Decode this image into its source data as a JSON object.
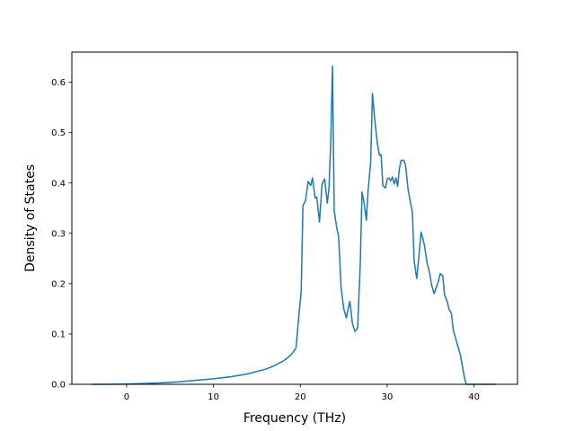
{
  "chart_data": {
    "type": "line",
    "title": "",
    "xlabel": "Frequency (THz)",
    "ylabel": "Density of States",
    "xlim": [
      -6.3,
      45.0
    ],
    "ylim": [
      0.0,
      0.66
    ],
    "xticks": [
      0,
      10,
      20,
      30,
      40
    ],
    "yticks": [
      0.0,
      0.1,
      0.2,
      0.3,
      0.4,
      0.5,
      0.6
    ],
    "ytick_labels": [
      "0.0",
      "0.1",
      "0.2",
      "0.3",
      "0.4",
      "0.5",
      "0.6"
    ],
    "grid": false,
    "legend": "none",
    "series": [
      {
        "color": "#1f77b4",
        "x": [
          -4.0,
          -2.0,
          0.0,
          2.0,
          4.0,
          6.0,
          8.0,
          10.0,
          12.0,
          14.0,
          16.0,
          17.0,
          18.0,
          18.5,
          19.0,
          19.5,
          19.8,
          20.1,
          20.3,
          20.6,
          20.9,
          21.2,
          21.4,
          21.7,
          21.9,
          22.2,
          22.5,
          22.8,
          23.1,
          23.3,
          23.5,
          23.7,
          23.9,
          24.2,
          24.4,
          24.7,
          25.0,
          25.3,
          25.5,
          25.7,
          26.0,
          26.3,
          26.6,
          26.9,
          27.1,
          27.3,
          27.6,
          27.8,
          28.1,
          28.3,
          28.6,
          28.9,
          29.1,
          29.3,
          29.5,
          29.8,
          30.0,
          30.2,
          30.4,
          30.6,
          30.8,
          31.0,
          31.2,
          31.4,
          31.6,
          31.9,
          32.1,
          32.4,
          32.6,
          32.9,
          33.1,
          33.4,
          33.6,
          33.9,
          34.1,
          34.3,
          34.6,
          34.9,
          35.1,
          35.4,
          35.6,
          35.9,
          36.1,
          36.4,
          36.6,
          36.9,
          37.1,
          37.4,
          37.6,
          37.9,
          38.1,
          38.4,
          38.6,
          38.9,
          39.1,
          40.0,
          42.5
        ],
        "y": [
          0.0,
          0.0,
          0.0005,
          0.0015,
          0.003,
          0.005,
          0.008,
          0.011,
          0.015,
          0.021,
          0.03,
          0.037,
          0.046,
          0.052,
          0.06,
          0.072,
          0.13,
          0.185,
          0.355,
          0.365,
          0.403,
          0.395,
          0.41,
          0.37,
          0.372,
          0.322,
          0.398,
          0.408,
          0.36,
          0.39,
          0.48,
          0.632,
          0.345,
          0.31,
          0.295,
          0.19,
          0.15,
          0.132,
          0.15,
          0.165,
          0.12,
          0.105,
          0.112,
          0.24,
          0.382,
          0.365,
          0.326,
          0.385,
          0.442,
          0.578,
          0.52,
          0.475,
          0.455,
          0.456,
          0.395,
          0.39,
          0.408,
          0.41,
          0.404,
          0.412,
          0.398,
          0.41,
          0.393,
          0.428,
          0.445,
          0.445,
          0.437,
          0.388,
          0.368,
          0.342,
          0.245,
          0.21,
          0.245,
          0.302,
          0.29,
          0.275,
          0.24,
          0.22,
          0.198,
          0.18,
          0.19,
          0.205,
          0.22,
          0.215,
          0.178,
          0.165,
          0.15,
          0.14,
          0.108,
          0.09,
          0.078,
          0.06,
          0.042,
          0.012,
          0.0,
          0.0,
          0.0
        ]
      }
    ]
  }
}
